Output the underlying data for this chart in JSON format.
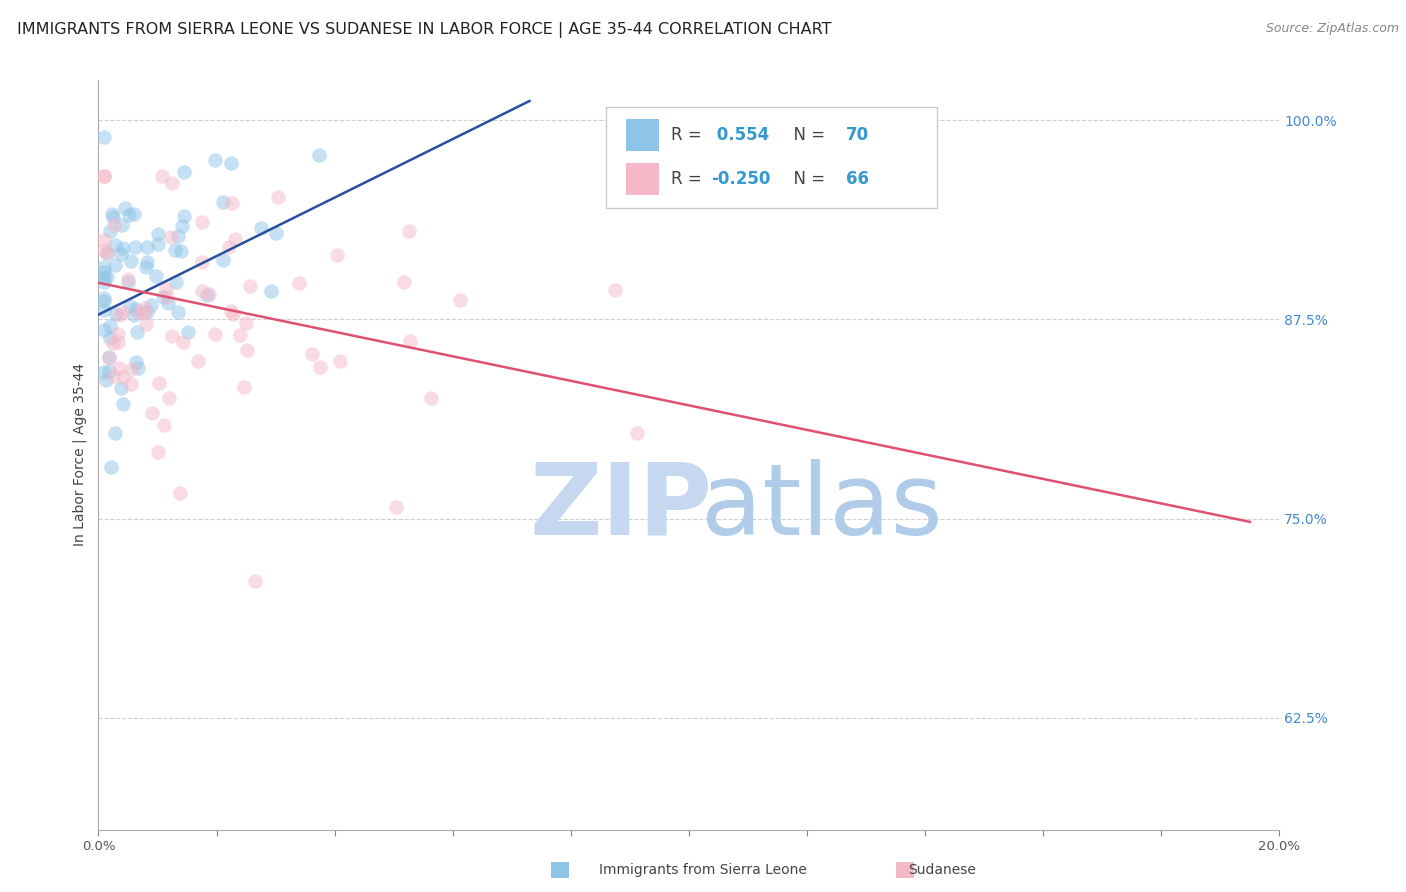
{
  "title": "IMMIGRANTS FROM SIERRA LEONE VS SUDANESE IN LABOR FORCE | AGE 35-44 CORRELATION CHART",
  "source": "Source: ZipAtlas.com",
  "ylabel": "In Labor Force | Age 35-44",
  "x_min": 0.0,
  "x_max": 0.2,
  "y_min": 0.555,
  "y_max": 1.025,
  "y_ticks": [
    0.625,
    0.75,
    0.875,
    1.0
  ],
  "y_tick_labels": [
    "62.5%",
    "75.0%",
    "87.5%",
    "100.0%"
  ],
  "x_ticks": [
    0.0,
    0.02,
    0.04,
    0.06,
    0.08,
    0.1,
    0.12,
    0.14,
    0.16,
    0.18,
    0.2
  ],
  "x_tick_labels": [
    "0.0%",
    "",
    "",
    "",
    "",
    "",
    "",
    "",
    "",
    "",
    "20.0%"
  ],
  "blue_line_x": [
    0.0,
    0.073
  ],
  "blue_line_y": [
    0.878,
    1.012
  ],
  "pink_line_x": [
    0.0,
    0.195
  ],
  "pink_line_y": [
    0.898,
    0.748
  ],
  "background_color": "#ffffff",
  "grid_color": "#d0d0d0",
  "blue_color": "#8EC4E8",
  "pink_color": "#F5B8C8",
  "blue_line_color": "#2850A0",
  "pink_line_color": "#E05070",
  "scatter_size": 110,
  "scatter_alpha": 0.5,
  "watermark_zip_color": "#C5D8F0",
  "watermark_atlas_color": "#B0CCE8",
  "title_fontsize": 11.5,
  "source_fontsize": 9,
  "tick_color_y": "#4488CC",
  "tick_color_x": "#555555",
  "legend_label1": "R =  0.554   N = 70",
  "legend_label2": "R = -0.250   N = 66",
  "legend_r1": " 0.554",
  "legend_n1": "70",
  "legend_r2": "-0.250",
  "legend_n2": "66",
  "bottom_legend_label1": "Immigrants from Sierra Leone",
  "bottom_legend_label2": "Sudanese"
}
